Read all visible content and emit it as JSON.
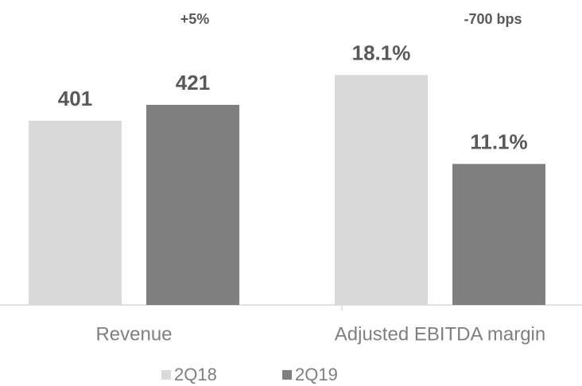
{
  "chart_data": [
    {
      "type": "bar",
      "annotation": "+5%",
      "categories": [
        "Revenue"
      ],
      "series": [
        {
          "name": "2Q18",
          "color": "#d9d9d9",
          "values": [
            401
          ]
        },
        {
          "name": "2Q19",
          "color": "#7f7f7f",
          "values": [
            421
          ]
        }
      ],
      "ylim": [
        169,
        553
      ]
    },
    {
      "type": "bar",
      "annotation": "-700 bps",
      "categories": [
        "Adjusted EBITDA margin"
      ],
      "series": [
        {
          "color": "#d9d9d9",
          "values": [
            18.1
          ],
          "value_labels": [
            "18.1%"
          ]
        },
        {
          "color": "#7f7f7f",
          "values": [
            11.1
          ],
          "value_labels": [
            "11.1%"
          ]
        }
      ],
      "ylim": [
        0,
        24
      ]
    }
  ]
}
